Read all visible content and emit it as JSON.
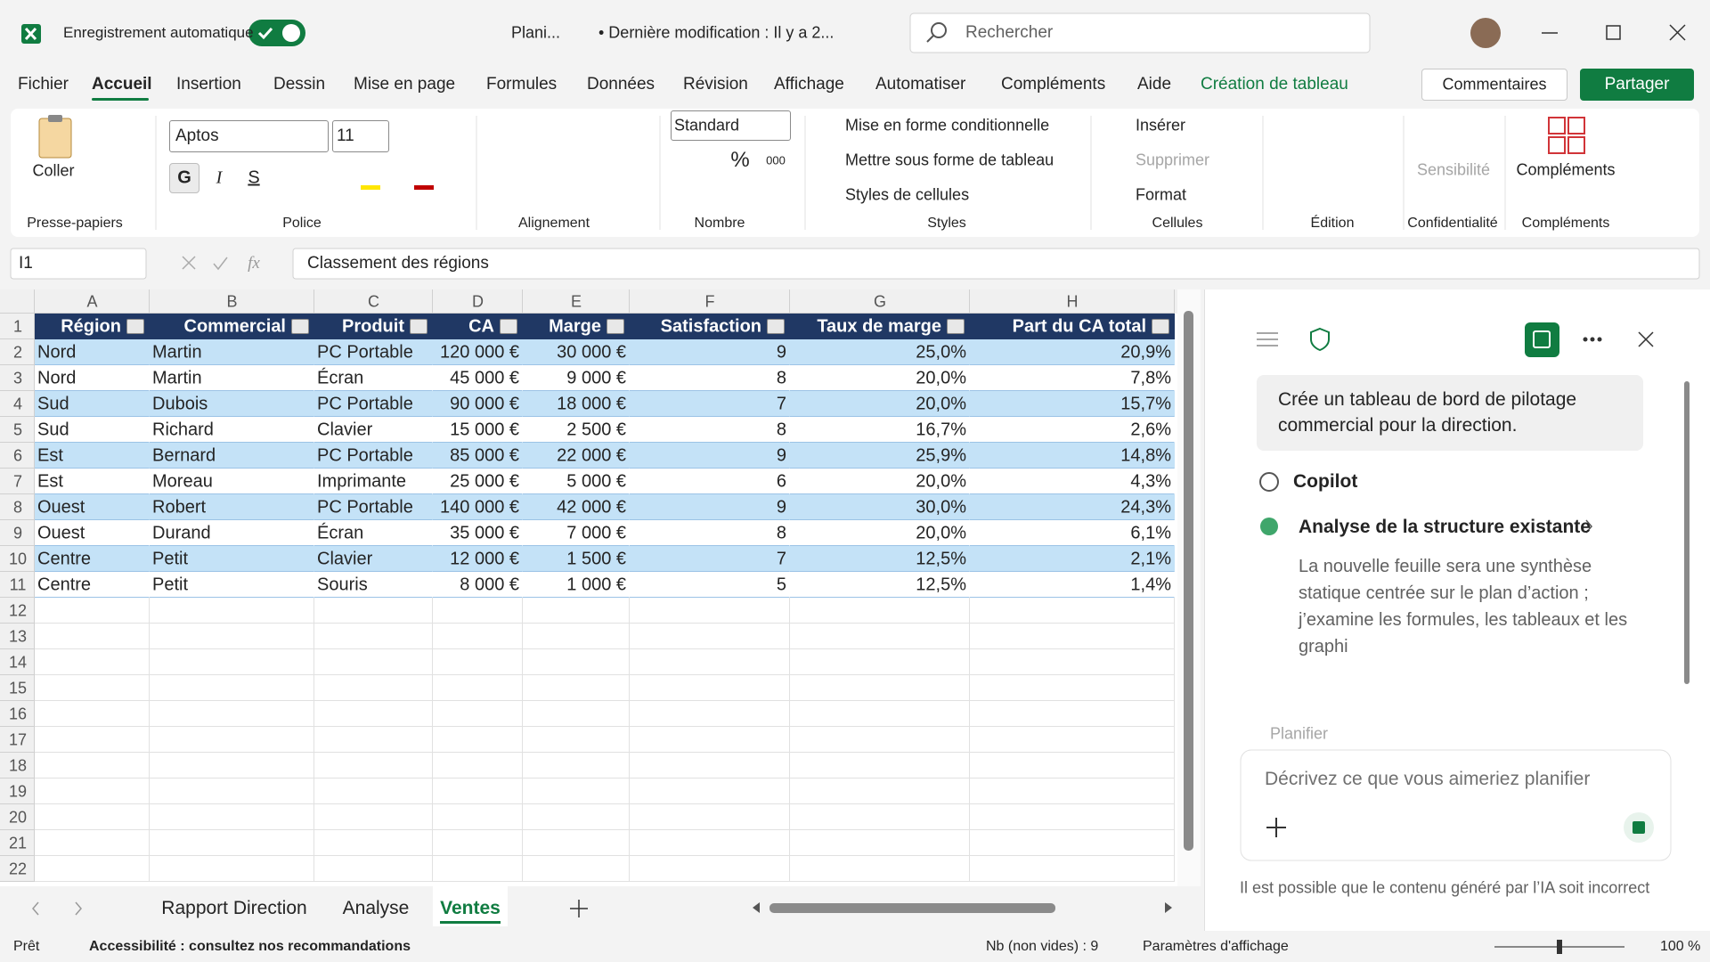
{
  "title_bar": {
    "autosave_label": "Enregistrement automatique",
    "file_name": "Plani...",
    "last_modified": "• Dernière modification : Il y a 2...",
    "search_placeholder": "Rechercher"
  },
  "ribbon_tabs": [
    "Fichier",
    "Accueil",
    "Insertion",
    "Dessin",
    "Mise en page",
    "Formules",
    "Données",
    "Révision",
    "Affichage",
    "Automatiser",
    "Compléments",
    "Aide",
    "Création de tableau"
  ],
  "ribbon_buttons": {
    "comments": "Commentaires",
    "share": "Partager"
  },
  "ribbon": {
    "paste": "Coller",
    "font_name": "Aptos",
    "font_size": 11,
    "bold": "G",
    "italic": "I",
    "underline": "S",
    "number_format": "Standard",
    "percent": "%",
    "thousands": "000",
    "conditional_formatting": "Mise en forme conditionnelle",
    "format_as_table": "Mettre sous forme de tableau",
    "cell_styles": "Styles de cellules",
    "insert": "Insérer",
    "delete": "Supprimer",
    "format": "Format",
    "sensitivity": "Sensibilité",
    "addins": "Compléments"
  },
  "ribbon_groups": [
    "Presse-papiers",
    "Police",
    "Alignement",
    "Nombre",
    "Styles",
    "Cellules",
    "Édition",
    "Confidentialité",
    "Compléments"
  ],
  "formula_bar": {
    "name_box": "I1",
    "fx": "fx",
    "content": "Classement des régions"
  },
  "sheet": {
    "columns": [
      "A",
      "B",
      "C",
      "D",
      "E",
      "F",
      "G",
      "H"
    ],
    "row_numbers": [
      1,
      2,
      3,
      4,
      5,
      6,
      7,
      8,
      9,
      10,
      11,
      12,
      13,
      14,
      15,
      16,
      17,
      18,
      19,
      20,
      21,
      22
    ],
    "header": [
      "Région",
      "Commercial",
      "Produit",
      "CA",
      "Marge",
      "Satisfaction",
      "Taux de marge",
      "Part du CA total"
    ],
    "rows": [
      [
        "Nord",
        "Martin",
        "PC Portable",
        "120 000 €",
        "30 000 €",
        9,
        "25,0%",
        "20,9%"
      ],
      [
        "Nord",
        "Martin",
        "Écran",
        "45 000 €",
        "9 000 €",
        8,
        "20,0%",
        "7,8%"
      ],
      [
        "Sud",
        "Dubois",
        "PC Portable",
        "90 000 €",
        "18 000 €",
        7,
        "20,0%",
        "15,7%"
      ],
      [
        "Sud",
        "Richard",
        "Clavier",
        "15 000 €",
        "2 500 €",
        8,
        "16,7%",
        "2,6%"
      ],
      [
        "Est",
        "Bernard",
        "PC Portable",
        "85 000 €",
        "22 000 €",
        9,
        "25,9%",
        "14,8%"
      ],
      [
        "Est",
        "Moreau",
        "Imprimante",
        "25 000 €",
        "5 000 €",
        6,
        "20,0%",
        "4,3%"
      ],
      [
        "Ouest",
        "Robert",
        "PC Portable",
        "140 000 €",
        "42 000 €",
        9,
        "30,0%",
        "24,3%"
      ],
      [
        "Ouest",
        "Durand",
        "Écran",
        "35 000 €",
        "7 000 €",
        8,
        "20,0%",
        "6,1%"
      ],
      [
        "Centre",
        "Petit",
        "Clavier",
        "12 000 €",
        "1 500 €",
        7,
        "12,5%",
        "2,1%"
      ],
      [
        "Centre",
        "Petit",
        "Souris",
        "8 000 €",
        "1 000 €",
        5,
        "12,5%",
        "1,4%"
      ]
    ]
  },
  "copilot": {
    "user_message": "Crée un tableau de bord de pilotage commercial pour la direction.",
    "assistant_name": "Copilot",
    "step_title": "Analyse de la structure existante",
    "step_text": "La nouvelle feuille sera une synthèse statique centrée sur le plan d’action ; j’examine les formules, les tableaux et les graphi",
    "mode": "Planifier",
    "input_placeholder": "Décrivez ce que vous aimeriez planifier",
    "disclaimer": "Il est possible que le contenu généré par l’IA soit incorrect"
  },
  "sheet_tabs": [
    "Rapport Direction",
    "Analyse",
    "Ventes"
  ],
  "status_bar": {
    "ready": "Prêt",
    "accessibility": "Accessibilité : consultez nos recommandations",
    "count": "Nb (non vides) : 9",
    "display_settings": "Paramètres d'affichage",
    "zoom": "100 %"
  }
}
